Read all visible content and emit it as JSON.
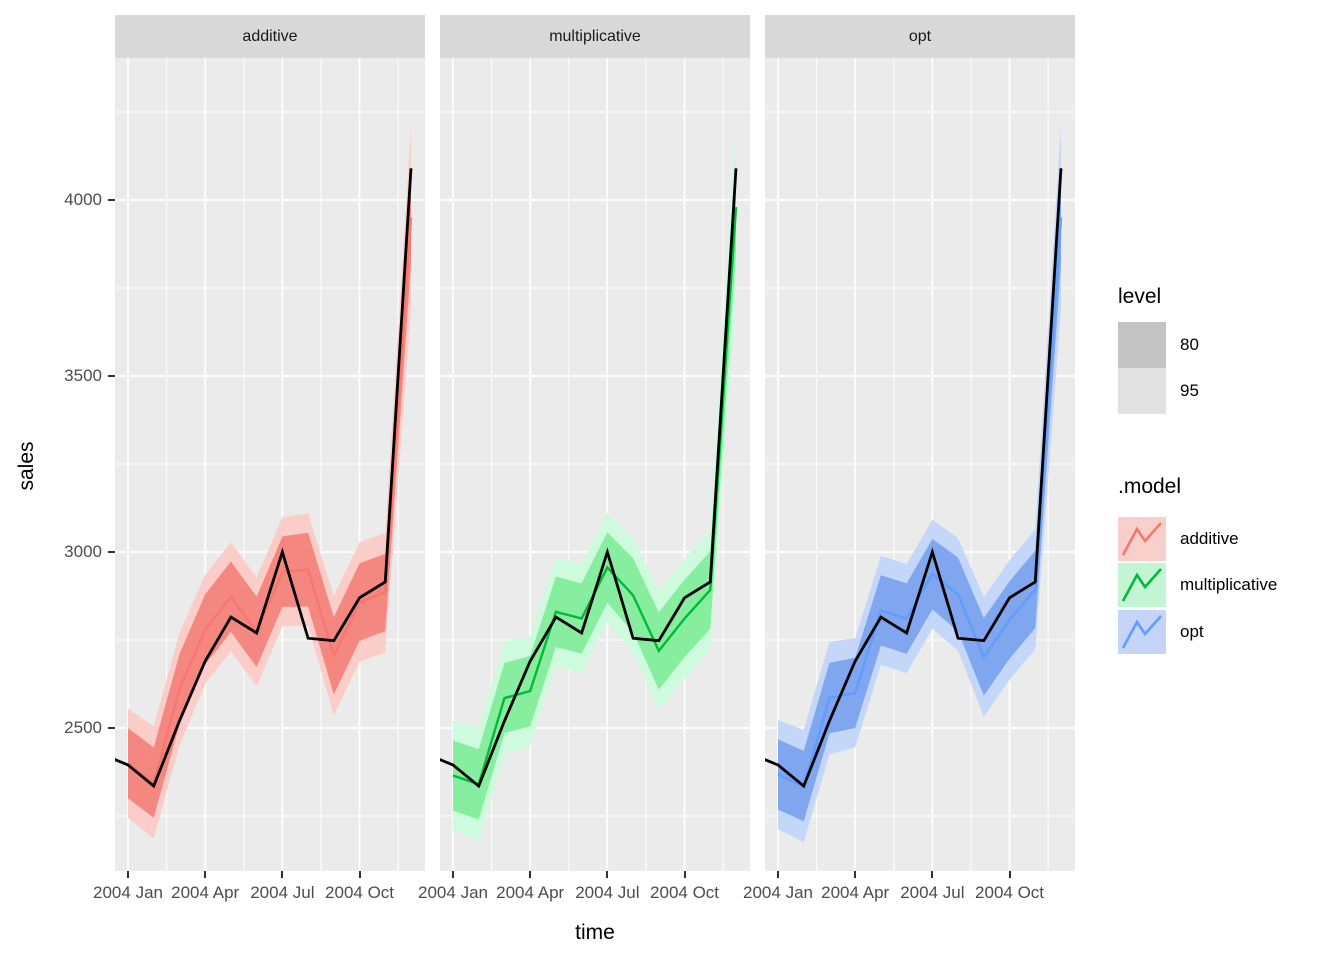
{
  "facets": [
    "additive",
    "multiplicative",
    "opt"
  ],
  "axes": {
    "x_title": "time",
    "y_title": "sales",
    "y_tick_labels": [
      "2500",
      "3000",
      "3500",
      "4000"
    ],
    "x_tick_labels": [
      "2004 Jan",
      "2004 Apr",
      "2004 Jul",
      "2004 Oct"
    ]
  },
  "legend": {
    "level_title": "level",
    "level_items": [
      {
        "label": "80",
        "swatch": "#C3C3C3"
      },
      {
        "label": "95",
        "swatch": "#E1E1E1"
      }
    ],
    "model_title": ".model",
    "model_items": [
      {
        "label": "additive",
        "fill": "#F9CFCB",
        "line": "#F8766D"
      },
      {
        "label": "multiplicative",
        "fill": "#C3F5D4",
        "line": "#00BA38"
      },
      {
        "label": "opt",
        "fill": "#C4D5F7",
        "line": "#619CFF"
      }
    ]
  },
  "chart_data": {
    "type": "line",
    "title": "",
    "xlabel": "time",
    "ylabel": "sales",
    "facet_variable": ".model",
    "facets": [
      "additive",
      "multiplicative",
      "opt"
    ],
    "legend_position": "right",
    "grid": "on",
    "x_months": [
      "2003 Dec",
      "2004 Jan",
      "2004 Feb",
      "2004 Mar",
      "2004 Apr",
      "2004 May",
      "2004 Jun",
      "2004 Jul",
      "2004 Aug",
      "2004 Sep",
      "2004 Oct",
      "2004 Nov",
      "2004 Dec"
    ],
    "actual_sales": [
      2425,
      2395,
      2335,
      2520,
      2690,
      2815,
      2770,
      3000,
      2755,
      2748,
      2870,
      2915,
      4090
    ],
    "fitted_start_month": "2004 Jan",
    "fitted": {
      "additive": [
        2400,
        2345,
        2610,
        2780,
        2873,
        2773,
        2944,
        2950,
        2705,
        2858,
        2885,
        3950
      ],
      "multiplicative": [
        2365,
        2340,
        2585,
        2605,
        2830,
        2811,
        2956,
        2877,
        2719,
        2811,
        2892,
        3980
      ],
      "opt": [
        2368,
        2335,
        2585,
        2600,
        2834,
        2811,
        2937,
        2879,
        2702,
        2807,
        2894,
        3950
      ]
    },
    "levels": [
      "80",
      "95"
    ],
    "interval_halfwidth": {
      "80": [
        100,
        100,
        100,
        100,
        100,
        100,
        100,
        105,
        110,
        110,
        110,
        130
      ],
      "95": [
        155,
        160,
        160,
        155,
        155,
        155,
        155,
        160,
        170,
        170,
        170,
        260
      ]
    },
    "colors": {
      "actual": "#000000",
      "additive": {
        "line": "#F8766D",
        "ribbon80": "#F48880",
        "ribbon95": "#FBCDC9"
      },
      "multiplicative": {
        "line": "#00BA38",
        "ribbon80": "#86EE9E",
        "ribbon95": "#CEFADD"
      },
      "opt": {
        "line": "#619CFF",
        "ribbon80": "#7FA6EE",
        "ribbon95": "#C4D7F8"
      }
    },
    "y_major": [
      2500,
      3000,
      3500,
      4000
    ],
    "y_minor": [
      2250,
      2750,
      3250,
      3750,
      4250
    ],
    "x_major_months": [
      0,
      3,
      6,
      9
    ],
    "x_minor_months": [
      1.5,
      4.5,
      7.5,
      10.5
    ],
    "ylim": [
      2094,
      4403
    ],
    "xlim_months": [
      -0.5,
      11.5
    ],
    "panel_bg": "#EBEBEB",
    "strip_bg": "#D9D9D9",
    "grid_color": "#FFFFFF"
  }
}
